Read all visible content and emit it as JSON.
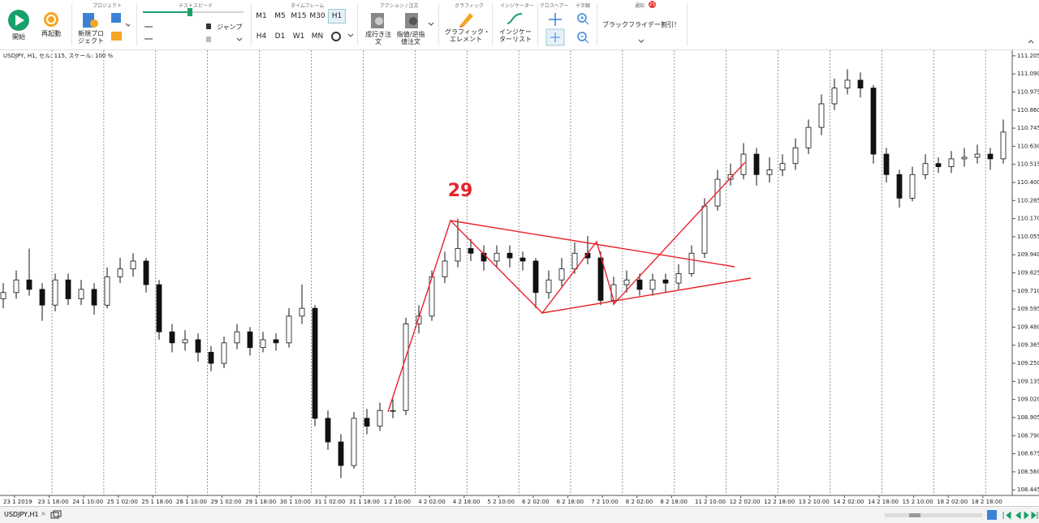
{
  "toolbar": {
    "start": "開始",
    "restart": "再起動",
    "project_group": "プロジェクト",
    "new_project": [
      "新規プロ",
      "ジェクト"
    ],
    "speed_group": "テストスピード",
    "jump": "ジャンプ",
    "timeframe_group": "タイムフレーム",
    "timeframes_row1": [
      "M1",
      "M5",
      "M15",
      "M30",
      "H1"
    ],
    "timeframes_row2": [
      "H4",
      "D1",
      "W1",
      "MN"
    ],
    "action_group": "アクション / 注文",
    "market_order": [
      "成行き注",
      "文"
    ],
    "limit_order": [
      "指値/逆指",
      "値注文"
    ],
    "graphic_group": "グラフィック",
    "graphic_element": [
      "グラフィック・",
      "エレメント"
    ],
    "indicator_group": "インジケーター",
    "indicator_list": [
      "インジケー",
      "ターリスト"
    ],
    "crosshair_group": "クロスヘアー",
    "zoom_group": "十字線",
    "notify_group": "通知",
    "notify_badge": "25",
    "promo": "ブラックフライデー割引！"
  },
  "status_tab": "USDJPY,H1",
  "chart_data": {
    "type": "candlestick",
    "title": "USDJPY, H1, セル: 115, スケール: 100 %",
    "annotation": "29",
    "x_labels": [
      "23 1 2019",
      "23 1 18:00",
      "24 1 10:00",
      "25 1 02:00",
      "25 1 18:00",
      "28 1 10:00",
      "29 1 02:00",
      "29 1 18:00",
      "30 1 10:00",
      "31 1 02:00",
      "31 1 18:00",
      "1 2 10:00",
      "4 2 02:00",
      "4 2 18:00",
      "5 2 10:00",
      "6 2 02:00",
      "6 2 18:00",
      "7 2 10:00",
      "8 2 02:00",
      "8 2 18:00",
      "11 2 10:00",
      "12 2 02:00",
      "12 2 18:00",
      "13 2 10:00",
      "14 2 02:00",
      "14 2 18:00",
      "15 2 10:00",
      "18 2 02:00",
      "18 2 18:00"
    ],
    "ylim": [
      108.415,
      111.23
    ],
    "yticks": [
      111.205,
      {
        "value": 111.09,
        "label": "111.090"
      },
      110.975,
      {
        "value": 110.86,
        "label": "110.860"
      },
      110.745,
      {
        "value": 110.63,
        "label": "110.630"
      },
      110.515,
      {
        "value": 110.4,
        "label": "110.400"
      },
      110.285,
      {
        "value": 110.17,
        "label": "110.170"
      },
      110.055,
      {
        "value": 109.94,
        "label": "109.940"
      },
      109.825,
      {
        "value": 109.71,
        "label": "109.710"
      },
      109.595,
      {
        "value": 109.48,
        "label": "109.480"
      },
      109.365,
      {
        "value": 109.25,
        "label": "109.250"
      },
      109.135,
      {
        "value": 109.02,
        "label": "109.020"
      },
      108.905,
      {
        "value": 108.79,
        "label": "108.790"
      },
      108.675,
      {
        "value": 108.56,
        "label": "108.560"
      },
      108.445
    ],
    "color": "#111111",
    "series": [
      {
        "name": "USDJPY",
        "open": [
          109.66,
          109.7,
          109.78,
          109.72,
          109.62,
          109.78,
          109.66,
          109.72,
          109.62,
          109.8,
          109.85,
          109.9,
          109.75,
          109.45,
          109.38,
          109.4,
          109.32,
          109.25,
          109.38,
          109.45,
          109.35,
          109.4,
          109.38,
          109.55,
          109.6,
          108.9,
          108.75,
          108.6,
          108.9,
          108.85,
          108.95,
          108.95,
          109.5,
          109.55,
          109.8,
          109.9,
          109.98,
          109.95,
          109.9,
          109.95,
          109.92,
          109.9,
          109.7,
          109.78,
          109.85,
          109.95,
          109.92,
          109.65,
          109.75,
          109.78,
          109.72,
          109.78,
          109.76,
          109.82,
          109.95,
          110.25,
          110.42,
          110.45,
          110.58,
          110.45,
          110.48,
          110.52,
          110.62,
          110.75,
          110.9,
          111.0,
          111.05,
          111.0,
          110.58,
          110.45,
          110.3,
          110.45,
          110.52,
          110.5,
          110.55,
          110.56,
          110.58,
          110.55
        ],
        "high": [
          109.76,
          109.84,
          109.98,
          109.76,
          109.82,
          109.82,
          109.78,
          109.76,
          109.86,
          109.92,
          109.95,
          109.92,
          109.78,
          109.5,
          109.46,
          109.44,
          109.36,
          109.42,
          109.5,
          109.48,
          109.45,
          109.44,
          109.6,
          109.75,
          109.62,
          108.95,
          108.8,
          108.94,
          108.96,
          109.0,
          109.02,
          109.54,
          109.62,
          109.84,
          109.96,
          110.17,
          110.04,
          110.0,
          110.0,
          110.0,
          109.96,
          109.92,
          109.84,
          109.92,
          110.02,
          110.06,
          109.96,
          109.8,
          109.84,
          109.82,
          109.82,
          109.82,
          109.88,
          110.0,
          110.3,
          110.48,
          110.52,
          110.65,
          110.62,
          110.56,
          110.58,
          110.68,
          110.8,
          110.96,
          111.06,
          111.12,
          111.1,
          111.02,
          110.62,
          110.48,
          110.5,
          110.58,
          110.56,
          110.6,
          110.62,
          110.64,
          110.62,
          110.8
        ],
        "low": [
          109.6,
          109.66,
          109.68,
          109.52,
          109.58,
          109.62,
          109.62,
          109.56,
          109.6,
          109.76,
          109.8,
          109.7,
          109.4,
          109.32,
          109.33,
          109.26,
          109.2,
          109.22,
          109.34,
          109.3,
          109.32,
          109.33,
          109.35,
          109.5,
          108.85,
          108.7,
          108.52,
          108.58,
          108.8,
          108.82,
          108.9,
          108.92,
          109.44,
          109.52,
          109.76,
          109.86,
          109.9,
          109.84,
          109.86,
          109.86,
          109.84,
          109.6,
          109.66,
          109.74,
          109.82,
          109.88,
          109.62,
          109.62,
          109.7,
          109.68,
          109.68,
          109.7,
          109.72,
          109.8,
          109.92,
          110.22,
          110.38,
          110.42,
          110.38,
          110.4,
          110.44,
          110.48,
          110.58,
          110.7,
          110.86,
          110.96,
          110.94,
          110.52,
          110.4,
          110.24,
          110.28,
          110.42,
          110.46,
          110.46,
          110.5,
          110.52,
          110.48,
          110.52
        ],
        "close": [
          109.7,
          109.78,
          109.72,
          109.62,
          109.78,
          109.66,
          109.72,
          109.62,
          109.8,
          109.85,
          109.9,
          109.75,
          109.45,
          109.38,
          109.4,
          109.32,
          109.25,
          109.38,
          109.45,
          109.35,
          109.4,
          109.38,
          109.55,
          109.6,
          108.9,
          108.75,
          108.6,
          108.9,
          108.85,
          108.95,
          108.95,
          109.5,
          109.55,
          109.8,
          109.9,
          109.98,
          109.95,
          109.9,
          109.95,
          109.92,
          109.9,
          109.7,
          109.78,
          109.85,
          109.95,
          109.92,
          109.65,
          109.75,
          109.78,
          109.72,
          109.78,
          109.76,
          109.82,
          109.95,
          110.25,
          110.42,
          110.45,
          110.58,
          110.45,
          110.48,
          110.52,
          110.62,
          110.75,
          110.9,
          111.0,
          111.05,
          111.0,
          110.58,
          110.45,
          110.3,
          110.45,
          110.52,
          110.5,
          110.55,
          110.56,
          110.58,
          110.55,
          110.72
        ]
      }
    ]
  }
}
